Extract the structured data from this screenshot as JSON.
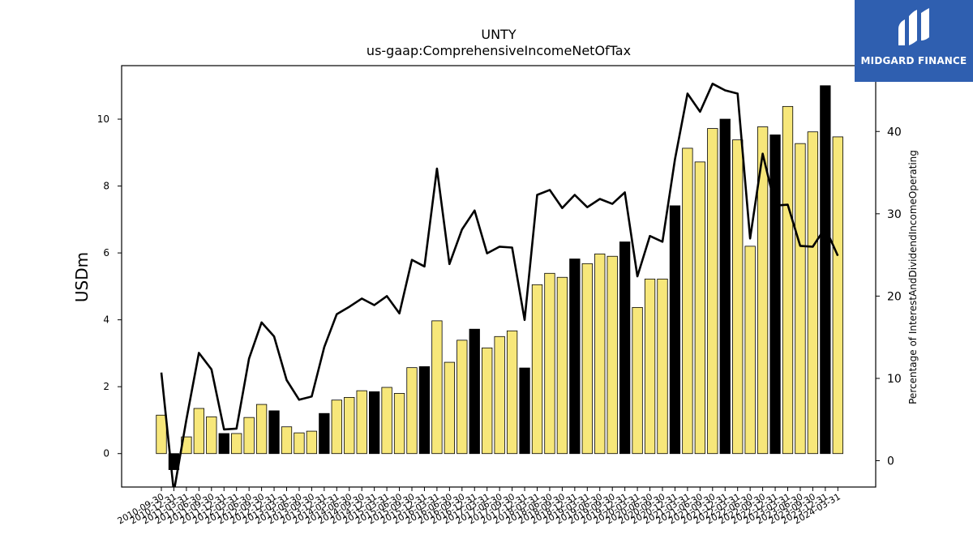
{
  "chart_data": {
    "type": "bar",
    "title": "UNTY",
    "subtitle": "us-gaap:ComprehensiveIncomeNetOfTax",
    "ylabel": "USDm",
    "y2label": "Percentage of InterestAndDividendIncomeOperating",
    "ylim": [
      -1.0,
      11.6
    ],
    "y2lim": [
      -3.2,
      48.0
    ],
    "yticks": [
      0,
      2,
      4,
      6,
      8,
      10
    ],
    "y2ticks": [
      0,
      10,
      20,
      30,
      40
    ],
    "bar_colors": {
      "normal": "#f7e77a",
      "q4": "#000000"
    },
    "categories": [
      "2010-09-30",
      "2010-12-31",
      "2011-03-31",
      "2011-06-30",
      "2011-09-30",
      "2011-12-31",
      "2012-03-31",
      "2012-06-30",
      "2012-09-30",
      "2012-12-31",
      "2013-03-31",
      "2013-06-30",
      "2013-09-30",
      "2013-12-31",
      "2014-03-31",
      "2014-06-30",
      "2014-09-30",
      "2014-12-31",
      "2015-03-31",
      "2015-06-30",
      "2015-09-30",
      "2015-12-31",
      "2016-03-31",
      "2016-06-30",
      "2016-09-30",
      "2016-12-31",
      "2017-03-31",
      "2017-06-30",
      "2017-09-30",
      "2017-12-31",
      "2018-03-31",
      "2018-06-30",
      "2018-09-30",
      "2018-12-31",
      "2019-03-31",
      "2019-06-30",
      "2019-09-30",
      "2019-12-31",
      "2020-03-31",
      "2020-06-30",
      "2020-09-30",
      "2020-12-31",
      "2021-03-31",
      "2021-06-30",
      "2021-09-30",
      "2021-12-31",
      "2022-03-31",
      "2022-06-30",
      "2022-09-30",
      "2022-12-31",
      "2023-03-31",
      "2023-06-30",
      "2023-09-30",
      "2023-12-31",
      "2024-03-31"
    ],
    "tick_labels": [
      "2010-09-30",
      "2010-12-31",
      "2011-03-31",
      "2011-06-30",
      "2011-09-30",
      "2011-12-31",
      "2012-03-31",
      "2012-06-30",
      "2012-09-30",
      "2012-12-31",
      "2013-03-31",
      "2013-06-30",
      "2013-09-30",
      "2013-12-31",
      "2014-03-31",
      "2014-06-30",
      "2014-09-30",
      "2014-12-31",
      "2015-03-31",
      "2015-06-30",
      "2015-09-30",
      "2015-12-31",
      "2016-03-31",
      "2016-06-30",
      "2016-09-30",
      "2016-12-31",
      "2017-03-31",
      "2017-06-30",
      "2017-09-30",
      "2017-12-31",
      "2018-03-31",
      "2018-06-30",
      "2018-09-30",
      "2018-12-31",
      "2019-03-31",
      "2019-06-30",
      "2019-09-30",
      "2019-12-31",
      "2020-03-31",
      "2020-06-30",
      "2020-09-30",
      "2020-12-31",
      "2021-03-31",
      "2021-06-30",
      "2021-09-30",
      "2021-12-31",
      "2022-03-31",
      "2022-06-30",
      "2022-09-30",
      "2022-12-31",
      "2023-03-31",
      "2023-06-30",
      "2023-09-30",
      "2023-12-31",
      "2024-03-31"
    ],
    "series": [
      {
        "type": "bar",
        "axis": "left",
        "values": [
          1.15,
          -0.48,
          0.5,
          1.35,
          1.1,
          0.6,
          0.6,
          1.08,
          1.47,
          1.28,
          0.8,
          0.62,
          0.67,
          1.2,
          1.6,
          1.68,
          1.88,
          1.85,
          1.98,
          1.8,
          2.57,
          2.6,
          3.97,
          2.73,
          3.39,
          3.72,
          3.16,
          3.5,
          3.67,
          2.56,
          5.05,
          5.39,
          5.27,
          5.82,
          5.68,
          5.97,
          5.9,
          6.33,
          4.37,
          5.22,
          5.22,
          7.41,
          9.13,
          8.72,
          9.72,
          10.0,
          9.38,
          6.2,
          9.77,
          9.53,
          10.38,
          9.27,
          9.62,
          11.0,
          9.47
        ]
      },
      {
        "type": "line",
        "axis": "right",
        "values": [
          10.7,
          -3.8,
          5.0,
          13.1,
          11.1,
          3.8,
          3.9,
          12.4,
          16.8,
          15.1,
          9.8,
          7.4,
          7.8,
          13.8,
          17.8,
          18.7,
          19.7,
          18.9,
          20.0,
          17.9,
          24.4,
          23.6,
          35.5,
          23.9,
          28.1,
          30.4,
          25.2,
          26.0,
          25.9,
          17.1,
          32.3,
          32.9,
          30.7,
          32.3,
          30.8,
          31.8,
          31.2,
          32.6,
          22.4,
          27.3,
          26.6,
          36.6,
          44.6,
          42.4,
          45.8,
          45.0,
          44.6,
          27.0,
          37.3,
          31.0,
          31.1,
          26.1,
          26.0,
          28.3,
          24.9
        ]
      }
    ],
    "grid": false,
    "legend": "none"
  },
  "logo": {
    "text": "MIDGARD FINANCE",
    "color": "#2f5fb0"
  }
}
